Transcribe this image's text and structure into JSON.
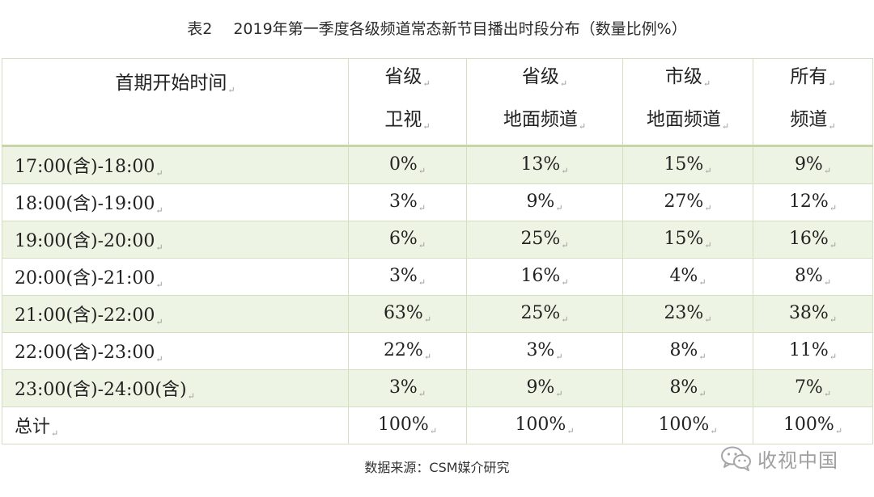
{
  "caption": {
    "table_no": "表2",
    "title": "2019年第一季度各级频道常态新节目播出时段分布（数量比例%）"
  },
  "table": {
    "columns": [
      {
        "line1": "首期开始时间",
        "line2": ""
      },
      {
        "line1": "省级",
        "line2": "卫视"
      },
      {
        "line1": "省级",
        "line2": "地面频道"
      },
      {
        "line1": "市级",
        "line2": "地面频道"
      },
      {
        "line1": "所有",
        "line2": "频道"
      }
    ],
    "rows": [
      {
        "time": "17:00(含)-18:00",
        "values": [
          "0%",
          "13%",
          "15%",
          "9%"
        ]
      },
      {
        "time": "18:00(含)-19:00",
        "values": [
          "3%",
          "9%",
          "27%",
          "12%"
        ]
      },
      {
        "time": "19:00(含)-20:00",
        "values": [
          "6%",
          "25%",
          "15%",
          "16%"
        ]
      },
      {
        "time": "20:00(含)-21:00",
        "values": [
          "3%",
          "16%",
          "4%",
          "8%"
        ]
      },
      {
        "time": "21:00(含)-22:00",
        "values": [
          "63%",
          "25%",
          "23%",
          "38%"
        ]
      },
      {
        "time": "22:00(含)-23:00",
        "values": [
          "22%",
          "3%",
          "8%",
          "11%"
        ]
      },
      {
        "time": "23:00(含)-24:00(含)",
        "values": [
          "3%",
          "9%",
          "8%",
          "7%"
        ]
      },
      {
        "time": "总计",
        "values": [
          "100%",
          "100%",
          "100%",
          "100%"
        ]
      }
    ],
    "para_mark": "↵"
  },
  "source": "数据来源：CSM媒介研究",
  "watermark": {
    "icon": "wechat-icon",
    "text": "收视中国"
  },
  "colors": {
    "border": "#d3dfc0",
    "shade": "#eef4e4",
    "header_rule": "#c6d6a9"
  }
}
